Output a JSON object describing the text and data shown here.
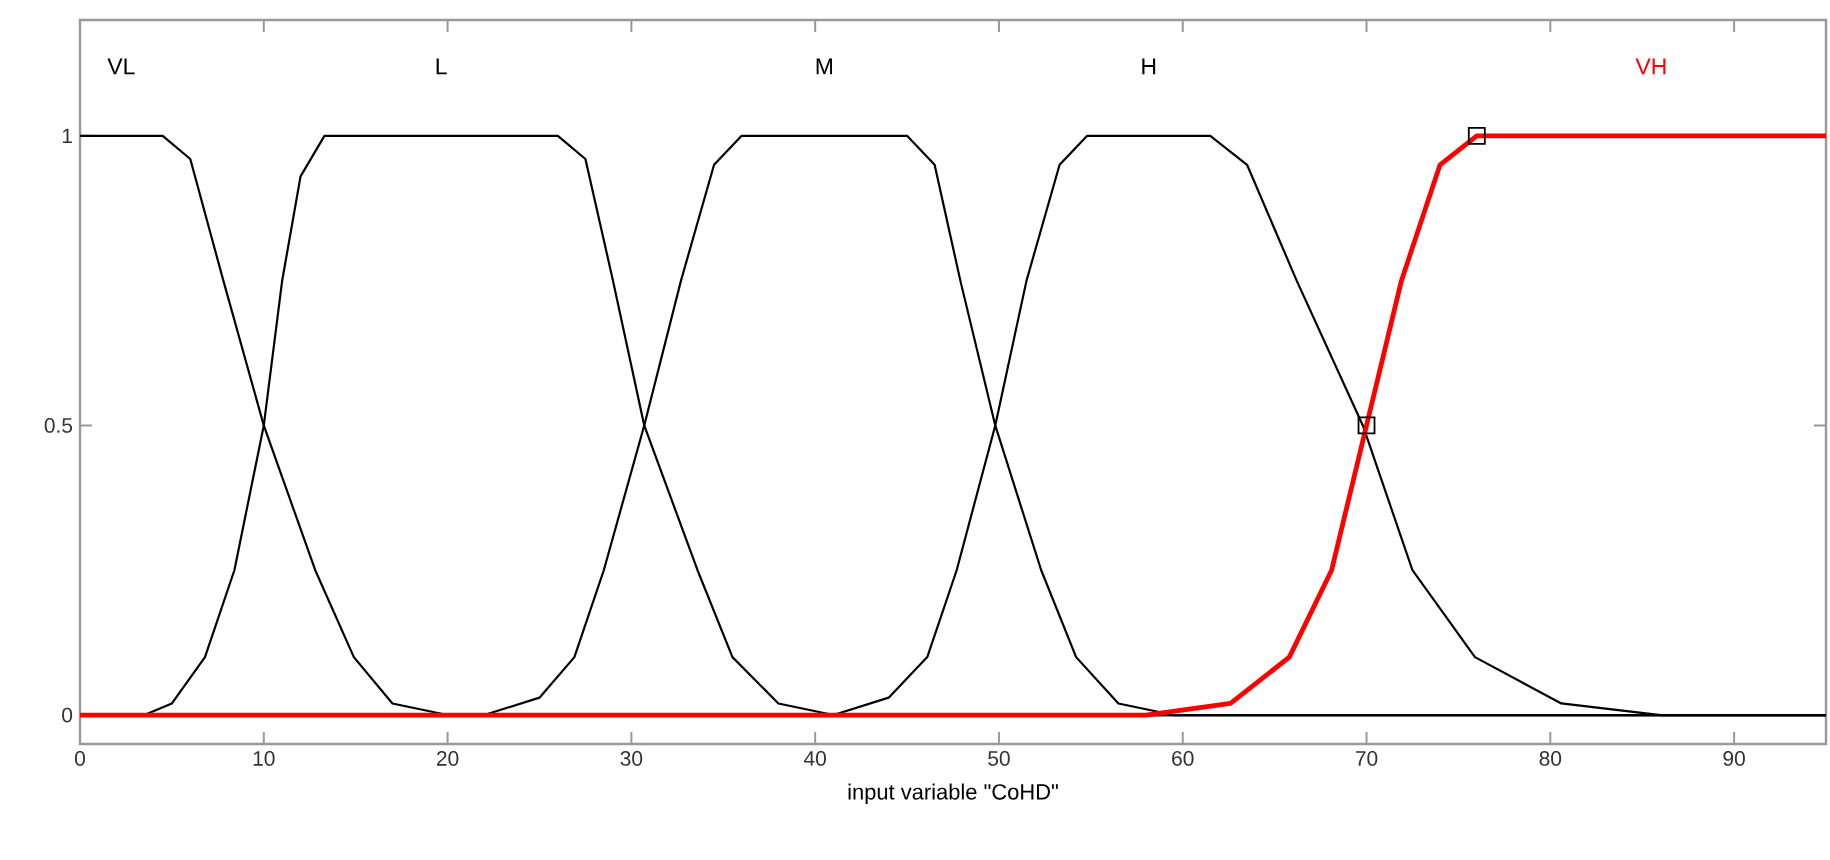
{
  "chart_data": {
    "type": "line",
    "xlabel": "input variable \"CoHD\"",
    "xlim": [
      0,
      95
    ],
    "xticks": [
      0,
      10,
      20,
      30,
      40,
      50,
      60,
      70,
      80,
      90
    ],
    "ylim": [
      -0.05,
      1.2
    ],
    "yticks": [
      0,
      0.5,
      1
    ],
    "grid": false,
    "series": [
      {
        "name": "VL",
        "color": "#000000",
        "x": [
          0,
          4.5,
          6,
          7.8,
          10,
          12.8,
          14.9,
          17,
          20,
          95
        ],
        "values": [
          1,
          1,
          0.96,
          0.75,
          0.5,
          0.25,
          0.1,
          0.02,
          0,
          0
        ]
      },
      {
        "name": "L",
        "color": "#000000",
        "x": [
          0,
          3.5,
          5,
          6.8,
          8.4,
          10,
          11,
          12,
          13.3,
          26,
          27.5,
          29,
          30.7,
          33.6,
          35.5,
          38,
          41,
          95
        ],
        "values": [
          0,
          0,
          0.02,
          0.1,
          0.25,
          0.5,
          0.75,
          0.93,
          1,
          1,
          0.96,
          0.75,
          0.5,
          0.25,
          0.1,
          0.02,
          0,
          0
        ]
      },
      {
        "name": "M",
        "color": "#000000",
        "x": [
          0,
          22,
          25,
          26.9,
          28.5,
          30.7,
          32.7,
          34.5,
          36,
          45,
          46.5,
          47.9,
          49.8,
          52.3,
          54.2,
          56.5,
          59.5,
          95
        ],
        "values": [
          0,
          0,
          0.03,
          0.1,
          0.25,
          0.5,
          0.75,
          0.95,
          1,
          1,
          0.95,
          0.75,
          0.5,
          0.25,
          0.1,
          0.02,
          0,
          0
        ]
      },
      {
        "name": "H",
        "color": "#000000",
        "x": [
          0,
          41,
          44,
          46.1,
          47.7,
          49.8,
          51.5,
          53.3,
          54.8,
          61.5,
          63.5,
          66.2,
          69.8,
          72.5,
          75.9,
          80.6,
          86,
          95
        ],
        "values": [
          0,
          0,
          0.03,
          0.1,
          0.25,
          0.5,
          0.75,
          0.95,
          1,
          1,
          0.95,
          0.75,
          0.5,
          0.25,
          0.1,
          0.02,
          0,
          0
        ]
      },
      {
        "name": "VH",
        "color": "#ff0000",
        "x": [
          0,
          58,
          62.6,
          65.8,
          68.1,
          70,
          71.9,
          74,
          76,
          95
        ],
        "values": [
          0,
          0,
          0.02,
          0.1,
          0.25,
          0.5,
          0.75,
          0.95,
          1,
          1
        ]
      },
      {
        "type": "scatter",
        "marker": "square",
        "color": "#000000",
        "x": [
          70,
          76
        ],
        "values": [
          0.5,
          1
        ]
      }
    ]
  }
}
